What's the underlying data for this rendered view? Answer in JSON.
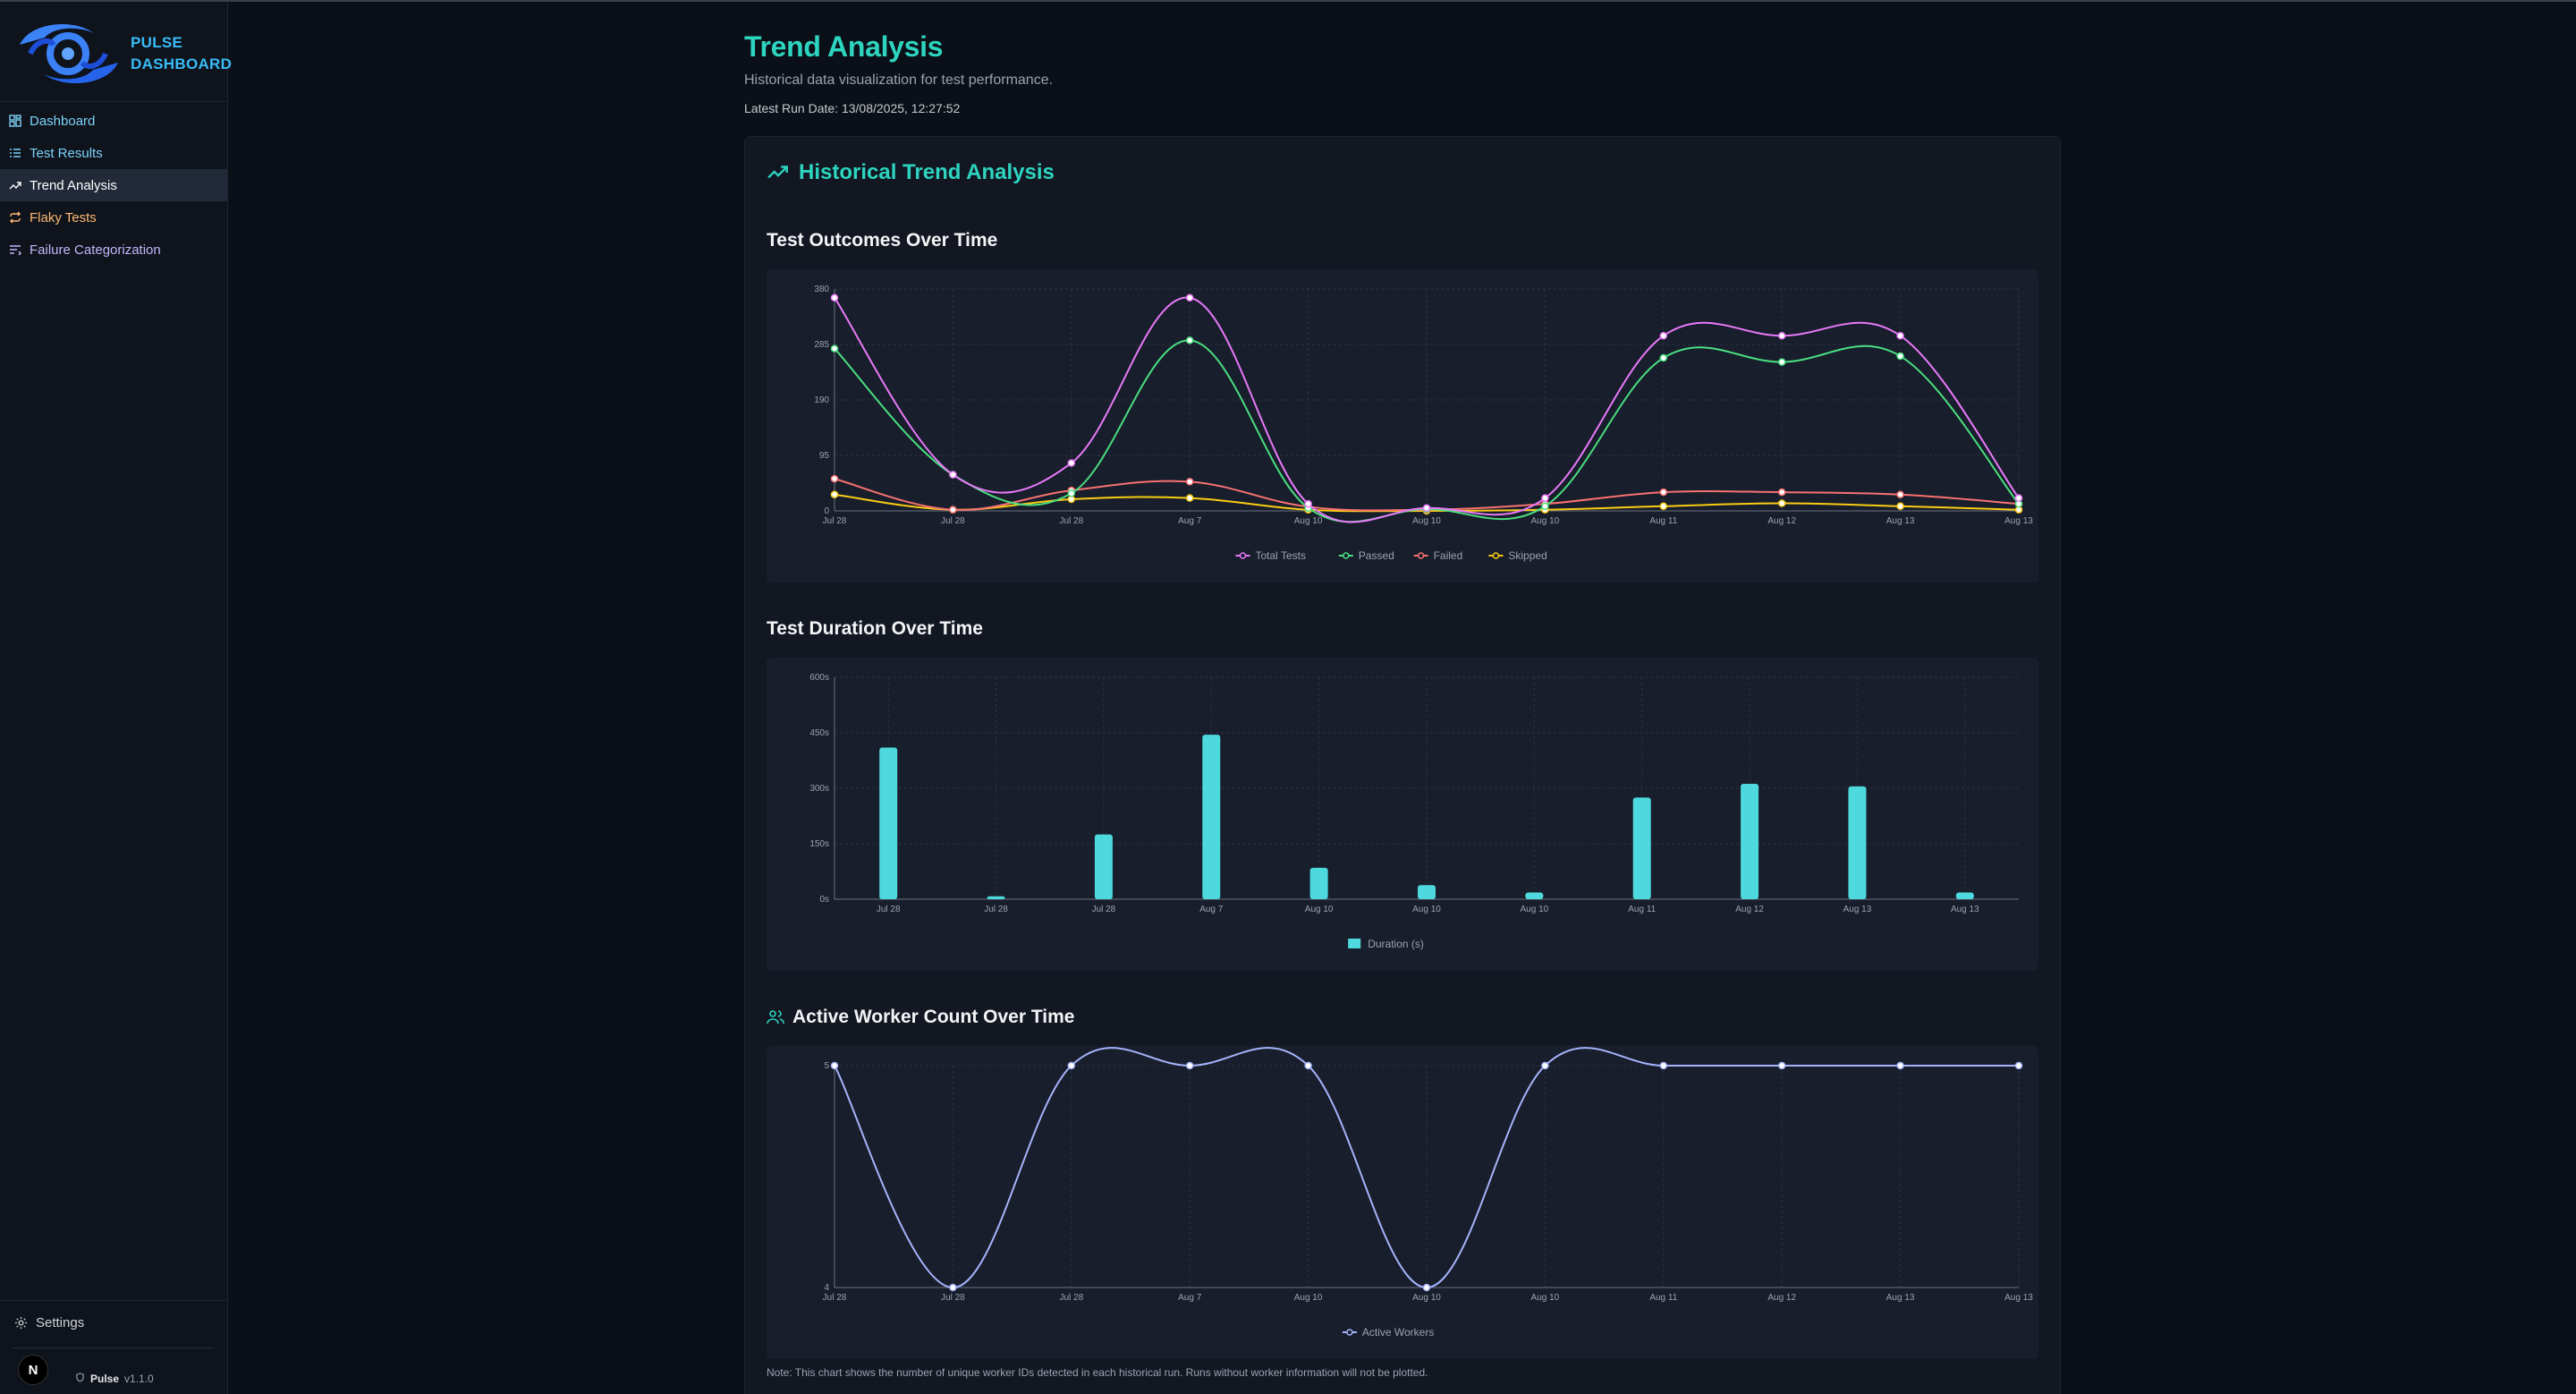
{
  "brand": {
    "line1": "PULSE",
    "line2": "DASHBOARD"
  },
  "nav": [
    {
      "label": "Dashboard",
      "icon": "grid-icon"
    },
    {
      "label": "Test Results",
      "icon": "list-icon"
    },
    {
      "label": "Trend Analysis",
      "icon": "trend-icon"
    },
    {
      "label": "Flaky Tests",
      "icon": "repeat-icon"
    },
    {
      "label": "Failure Categorization",
      "icon": "filter-list-icon"
    }
  ],
  "sidebar_bottom": {
    "settings": "Settings",
    "badge": "N",
    "product": "Pulse",
    "version": "v1.1.0"
  },
  "page": {
    "title": "Trend Analysis",
    "subtitle": "Historical data visualization for test performance.",
    "latest_run": "Latest Run Date: 13/08/2025, 12:27:52"
  },
  "card": {
    "title": "Historical Trend Analysis",
    "outcomes_title": "Test Outcomes Over Time",
    "duration_title": "Test Duration Over Time",
    "workers_title": "Active Worker Count Over Time",
    "note": "Note: This chart shows the number of unique worker IDs detected in each historical run. Runs without worker information will not be plotted."
  },
  "colors": {
    "total": "#e879f9",
    "passed": "#4ade80",
    "failed": "#f87171",
    "skipped": "#facc15",
    "duration": "#4dd9dd",
    "workers": "#a5b4fc",
    "accent": "#2dd4bf"
  },
  "chart_data": [
    {
      "type": "line",
      "title": "Test Outcomes Over Time",
      "categories": [
        "Jul 28",
        "Jul 28",
        "Jul 28",
        "Aug 7",
        "Aug 10",
        "Aug 10",
        "Aug 10",
        "Aug 11",
        "Aug 12",
        "Aug 13",
        "Aug 13"
      ],
      "series": [
        {
          "name": "Total Tests",
          "values": [
            365,
            62,
            82,
            365,
            12,
            5,
            22,
            300,
            300,
            300,
            22
          ]
        },
        {
          "name": "Passed",
          "values": [
            278,
            62,
            30,
            292,
            5,
            3,
            8,
            262,
            255,
            265,
            12
          ]
        },
        {
          "name": "Failed",
          "values": [
            55,
            2,
            35,
            50,
            7,
            2,
            12,
            32,
            32,
            28,
            12
          ]
        },
        {
          "name": "Skipped",
          "values": [
            28,
            2,
            20,
            22,
            2,
            0,
            2,
            8,
            13,
            8,
            2
          ]
        }
      ],
      "yticks": [
        0,
        95,
        190,
        285,
        380
      ],
      "ylim": [
        0,
        380
      ],
      "legend": "bottom"
    },
    {
      "type": "bar",
      "title": "Test Duration Over Time",
      "categories": [
        "Jul 28",
        "Jul 28",
        "Jul 28",
        "Aug 7",
        "Aug 10",
        "Aug 10",
        "Aug 10",
        "Aug 11",
        "Aug 12",
        "Aug 13",
        "Aug 13"
      ],
      "series": [
        {
          "name": "Duration (s)",
          "values": [
            410,
            8,
            175,
            445,
            85,
            38,
            18,
            275,
            312,
            305,
            18
          ]
        }
      ],
      "yticks": [
        "0s",
        "150s",
        "300s",
        "450s",
        "600s"
      ],
      "ylim": [
        0,
        600
      ],
      "legend": "bottom"
    },
    {
      "type": "line",
      "title": "Active Worker Count Over Time",
      "categories": [
        "Jul 28",
        "Jul 28",
        "Jul 28",
        "Aug 7",
        "Aug 10",
        "Aug 10",
        "Aug 10",
        "Aug 11",
        "Aug 12",
        "Aug 13",
        "Aug 13"
      ],
      "series": [
        {
          "name": "Active Workers",
          "values": [
            5,
            4,
            5,
            5,
            5,
            4,
            5,
            5,
            5,
            5,
            5
          ]
        }
      ],
      "yticks": [
        4,
        5
      ],
      "ylim": [
        4,
        5
      ],
      "legend": "bottom"
    }
  ]
}
